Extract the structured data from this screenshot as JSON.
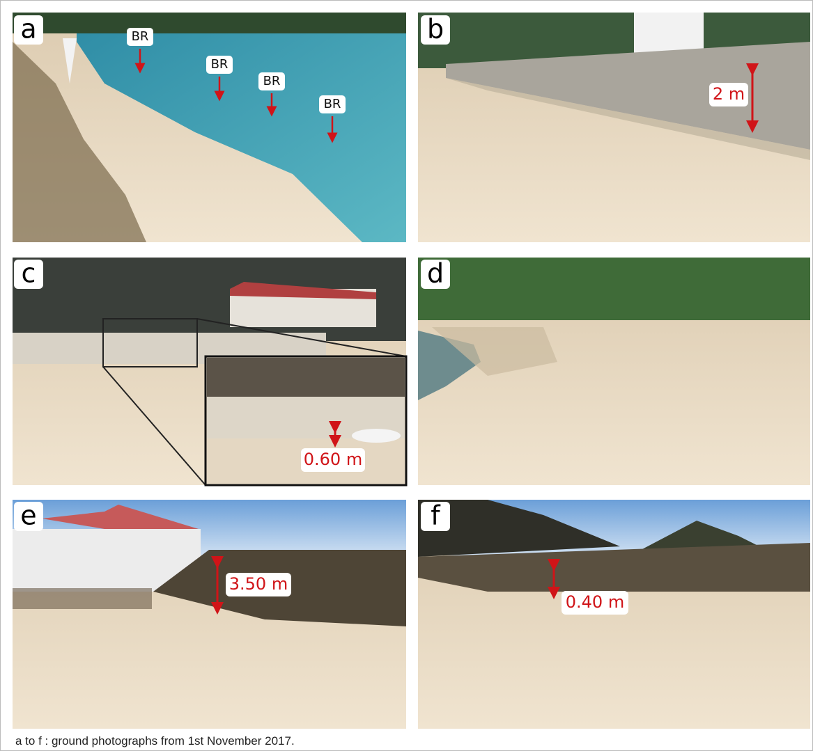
{
  "panels": [
    {
      "letter": "a",
      "labels": [
        "BR",
        "BR",
        "BR",
        "BR"
      ]
    },
    {
      "letter": "b",
      "labels": [
        "2 m"
      ]
    },
    {
      "letter": "c",
      "labels": [
        "0.60 m"
      ]
    },
    {
      "letter": "d",
      "labels": []
    },
    {
      "letter": "e",
      "labels": [
        "3.50 m"
      ]
    },
    {
      "letter": "f",
      "labels": [
        "0.40 m"
      ]
    }
  ],
  "caption": "a to f : ground photographs from 1st November 2017."
}
